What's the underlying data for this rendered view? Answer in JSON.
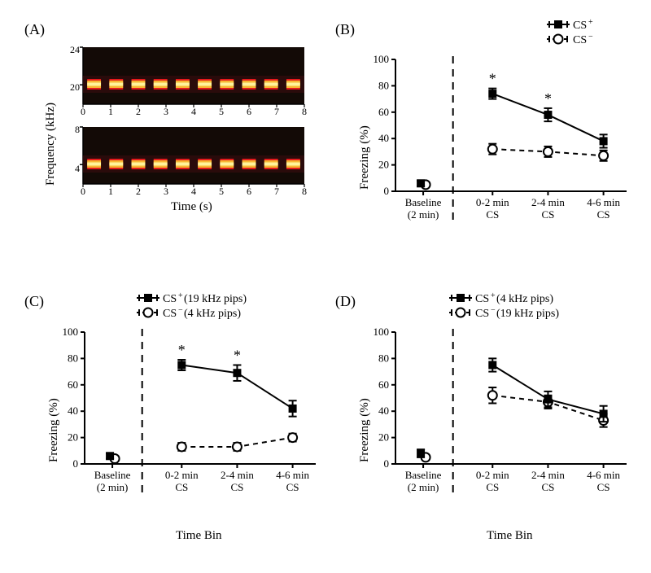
{
  "labels": {
    "A": "(A)",
    "B": "(B)",
    "C": "(C)",
    "D": "(D)",
    "time_s": "Time (s)",
    "freq_khz": "Frequency (kHz)",
    "freezing": "Freezing (%)",
    "time_bin": "Time Bin",
    "baseline": "Baseline",
    "baseline2": "(2 min)",
    "bin02": "0-2 min",
    "bin24": "2-4 min",
    "bin46": "4-6 min",
    "cs": "CS",
    "csplus": "CS",
    "csminus": "CS",
    "sup_plus": "+",
    "sup_minus": "−",
    "c_plus_suffix": " (19 kHz pips)",
    "c_minus_suffix": " (4 kHz pips)",
    "d_plus_suffix": " (4 kHz pips)",
    "d_minus_suffix": " (19 kHz pips)",
    "star": "*"
  },
  "spectrogram": {
    "upper_ticks_khz": [
      20,
      24
    ],
    "upper_band_center_khz": 19,
    "lower_ticks_khz": [
      4,
      8
    ],
    "lower_band_center_khz": 4,
    "x_ticks_s": [
      0,
      1,
      2,
      3,
      4,
      5,
      6,
      7,
      8
    ],
    "bg_color": "#130a06",
    "dark_band1": "#2a0b0b",
    "band_outer": "#e51a1a",
    "band_mid": "#f7b733",
    "band_core": "#fff39a",
    "pip_count": 10
  },
  "chart_common": {
    "ylim": [
      0,
      100
    ],
    "ytick_step": 20,
    "yticks": [
      0,
      20,
      40,
      60,
      80,
      100
    ],
    "x_categories": [
      "Baseline",
      "0-2",
      "2-4",
      "4-6"
    ],
    "baseline_divider": true,
    "colors": {
      "axis": "#000000",
      "csplus_fill": "#000000",
      "csminus_fill": "#ffffff",
      "line": "#000000",
      "dash": "#000000"
    },
    "marker_size": 9,
    "line_width": 2,
    "err_cap": 5
  },
  "panel_B": {
    "baseline": {
      "csplus": {
        "y": 6,
        "e": 2
      },
      "csminus": {
        "y": 5,
        "e": 2
      }
    },
    "csplus": [
      {
        "y": 74,
        "e": 4
      },
      {
        "y": 58,
        "e": 5
      },
      {
        "y": 38,
        "e": 5
      }
    ],
    "csminus": [
      {
        "y": 32,
        "e": 4
      },
      {
        "y": 30,
        "e": 4
      },
      {
        "y": 27,
        "e": 4
      }
    ],
    "sig": [
      true,
      true,
      false
    ]
  },
  "panel_C": {
    "baseline": {
      "csplus": {
        "y": 6,
        "e": 2
      },
      "csminus": {
        "y": 4,
        "e": 2
      }
    },
    "csplus": [
      {
        "y": 75,
        "e": 4
      },
      {
        "y": 69,
        "e": 6
      },
      {
        "y": 42,
        "e": 6
      }
    ],
    "csminus": [
      {
        "y": 13,
        "e": 3
      },
      {
        "y": 13,
        "e": 3
      },
      {
        "y": 20,
        "e": 3
      }
    ],
    "sig": [
      true,
      true,
      false
    ]
  },
  "panel_D": {
    "baseline": {
      "csplus": {
        "y": 8,
        "e": 3
      },
      "csminus": {
        "y": 5,
        "e": 2
      }
    },
    "csplus": [
      {
        "y": 75,
        "e": 5
      },
      {
        "y": 49,
        "e": 6
      },
      {
        "y": 38,
        "e": 6
      }
    ],
    "csminus": [
      {
        "y": 52,
        "e": 6
      },
      {
        "y": 47,
        "e": 5
      },
      {
        "y": 33,
        "e": 5
      }
    ],
    "sig": [
      false,
      false,
      false
    ]
  }
}
